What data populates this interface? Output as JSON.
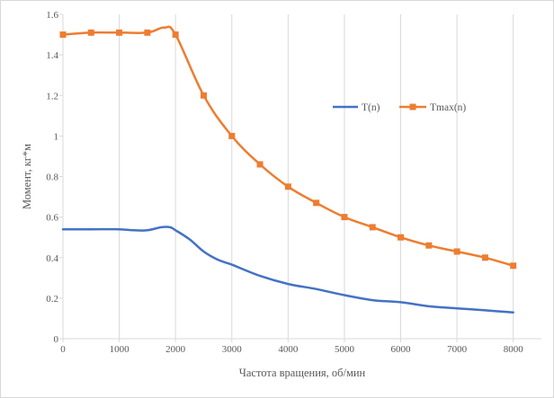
{
  "chart_data": {
    "type": "line",
    "title": "",
    "xlabel": "Частота вращения, об/мин",
    "ylabel": "Момент, кг*м",
    "xlim": [
      0,
      8500
    ],
    "ylim": [
      0,
      1.6
    ],
    "xticks": [
      0,
      1000,
      2000,
      3000,
      4000,
      5000,
      6000,
      7000,
      8000
    ],
    "yticks": [
      0,
      0.2,
      0.4,
      0.6,
      0.8,
      1,
      1.2,
      1.4,
      1.6
    ],
    "xtick_labels": [
      "0",
      "1000",
      "2000",
      "3000",
      "4000",
      "5000",
      "6000",
      "7000",
      "8000"
    ],
    "ytick_labels": [
      "0",
      "0.2",
      "0.4",
      "0.6",
      "0.8",
      "1",
      "1.2",
      "1.4",
      "1.6"
    ],
    "grid": "vertical",
    "legend_position": "right",
    "series": [
      {
        "name": "T(n)",
        "color": "#4472c4",
        "marker": "none",
        "x": [
          0,
          500,
          1000,
          1250,
          1500,
          1750,
          1900,
          2000,
          2250,
          2500,
          2750,
          3000,
          3500,
          4000,
          4500,
          5000,
          5500,
          6000,
          6500,
          7000,
          7500,
          8000
        ],
        "y": [
          0.54,
          0.54,
          0.54,
          0.535,
          0.535,
          0.55,
          0.55,
          0.535,
          0.49,
          0.43,
          0.39,
          0.365,
          0.31,
          0.27,
          0.245,
          0.215,
          0.19,
          0.18,
          0.16,
          0.15,
          0.14,
          0.13
        ]
      },
      {
        "name": "Tmax(n)",
        "color": "#ed7d31",
        "marker": "square",
        "x": [
          0,
          500,
          1000,
          1500,
          2000,
          2500,
          3000,
          3500,
          4000,
          4500,
          5000,
          5500,
          6000,
          6500,
          7000,
          7500,
          8000
        ],
        "y": [
          1.5,
          1.51,
          1.51,
          1.51,
          1.5,
          1.2,
          1.0,
          0.86,
          0.75,
          0.67,
          0.6,
          0.55,
          0.5,
          0.46,
          0.43,
          0.4,
          0.36
        ]
      }
    ],
    "tmax_peak": {
      "x": 1800,
      "y": 1.535
    }
  }
}
